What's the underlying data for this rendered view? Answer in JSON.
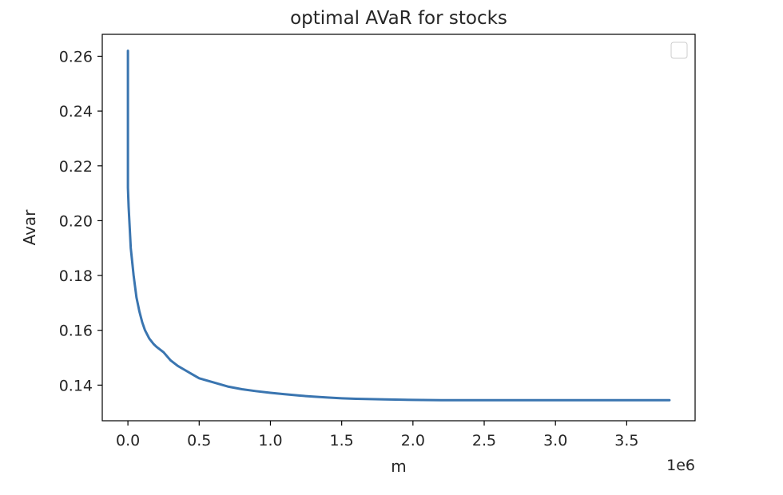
{
  "chart_data": {
    "type": "line",
    "title": "optimal AVaR for stocks",
    "xlabel": "m",
    "ylabel": "Avar",
    "x_offset_label": "1e6",
    "x_multiplier": 1000000,
    "xlim": [
      -0.18,
      3.98
    ],
    "ylim": [
      0.127,
      0.268
    ],
    "xticks": [
      0.0,
      0.5,
      1.0,
      1.5,
      2.0,
      2.5,
      3.0,
      3.5
    ],
    "xtick_labels": [
      "0.0",
      "0.5",
      "1.0",
      "1.5",
      "2.0",
      "2.5",
      "3.0",
      "3.5"
    ],
    "yticks": [
      0.14,
      0.16,
      0.18,
      0.2,
      0.22,
      0.24,
      0.26
    ],
    "ytick_labels": [
      "0.14",
      "0.16",
      "0.18",
      "0.20",
      "0.22",
      "0.24",
      "0.26"
    ],
    "grid": false,
    "legend": "top-right",
    "legend_entries": [],
    "colors": {
      "line": "#3a75b0",
      "axes": "#000000",
      "text": "#262626"
    },
    "series": [
      {
        "x": [
          0.0,
          0.0,
          0.005,
          0.01,
          0.015,
          0.02,
          0.03,
          0.04,
          0.05,
          0.06,
          0.08,
          0.1,
          0.12,
          0.15,
          0.18,
          0.2,
          0.25,
          0.3,
          0.35,
          0.4,
          0.45,
          0.5,
          0.6,
          0.7,
          0.8,
          0.9,
          1.0,
          1.1,
          1.2,
          1.3,
          1.4,
          1.5,
          1.6,
          1.8,
          2.0,
          2.2,
          2.5,
          3.0,
          3.5,
          3.8
        ],
        "y": [
          0.262,
          0.212,
          0.205,
          0.2,
          0.195,
          0.19,
          0.185,
          0.18,
          0.176,
          0.172,
          0.167,
          0.163,
          0.16,
          0.157,
          0.155,
          0.154,
          0.152,
          0.149,
          0.147,
          0.1455,
          0.144,
          0.1425,
          0.141,
          0.1395,
          0.1385,
          0.1378,
          0.1372,
          0.1367,
          0.1362,
          0.1358,
          0.1355,
          0.1352,
          0.135,
          0.1348,
          0.1346,
          0.1345,
          0.1345,
          0.1345,
          0.1345,
          0.1345
        ]
      }
    ]
  }
}
